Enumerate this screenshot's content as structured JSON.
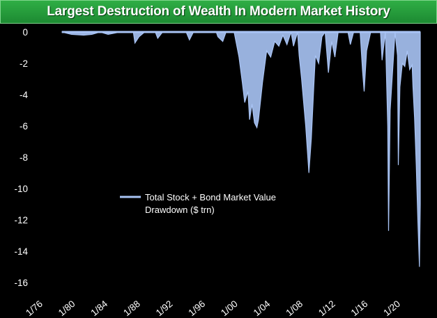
{
  "chart_data": {
    "type": "area",
    "title": "Largest Destruction of Wealth In Modern Market History",
    "xlabel": "",
    "ylabel": "",
    "x_tick_labels": [
      "1/76",
      "1/80",
      "1/84",
      "1/88",
      "1/92",
      "1/96",
      "1/00",
      "1/04",
      "1/08",
      "1/12",
      "1/16",
      "1/20"
    ],
    "y_ticks": [
      0,
      -2,
      -4,
      -6,
      -8,
      -10,
      -12,
      -14,
      -16
    ],
    "xlim": [
      1976.0,
      2023.5
    ],
    "ylim": [
      -16,
      0
    ],
    "grid": false,
    "legend": "center-left",
    "series": [
      {
        "name": "Total Stock + Bond Market Value Drawdown ($ trn)",
        "color": "#a9c4f5",
        "points": [
          [
            1978.8,
            0
          ],
          [
            1980.0,
            -0.15
          ],
          [
            1981.5,
            -0.2
          ],
          [
            1982.5,
            -0.15
          ],
          [
            1983.5,
            0
          ],
          [
            1984.5,
            -0.15
          ],
          [
            1986.0,
            0
          ],
          [
            1987.6,
            0
          ],
          [
            1987.8,
            -0.7
          ],
          [
            1988.3,
            -0.3
          ],
          [
            1989.0,
            0
          ],
          [
            1990.3,
            0
          ],
          [
            1990.6,
            -0.4
          ],
          [
            1991.2,
            0
          ],
          [
            1993.0,
            0
          ],
          [
            1994.1,
            0
          ],
          [
            1994.5,
            -0.5
          ],
          [
            1995.0,
            0
          ],
          [
            1997.8,
            0
          ],
          [
            1998.0,
            -0.3
          ],
          [
            1998.6,
            -0.6
          ],
          [
            1999.0,
            0
          ],
          [
            2000.0,
            0
          ],
          [
            2000.6,
            -1.6
          ],
          [
            2001.0,
            -3.2
          ],
          [
            2001.3,
            -4.5
          ],
          [
            2001.7,
            -3.8
          ],
          [
            2001.9,
            -5.6
          ],
          [
            2002.2,
            -4.6
          ],
          [
            2002.5,
            -5.8
          ],
          [
            2002.8,
            -6.1
          ],
          [
            2003.0,
            -5.6
          ],
          [
            2003.5,
            -3.2
          ],
          [
            2004.0,
            -1.2
          ],
          [
            2004.5,
            -1.6
          ],
          [
            2005.0,
            -0.6
          ],
          [
            2005.5,
            -0.9
          ],
          [
            2006.0,
            -0.2
          ],
          [
            2006.5,
            -0.8
          ],
          [
            2007.0,
            0
          ],
          [
            2007.3,
            -0.9
          ],
          [
            2007.8,
            0
          ],
          [
            2008.0,
            -1.5
          ],
          [
            2008.3,
            -3.0
          ],
          [
            2008.8,
            -6.0
          ],
          [
            2009.0,
            -7.5
          ],
          [
            2009.2,
            -9.0
          ],
          [
            2009.5,
            -6.8
          ],
          [
            2009.8,
            -3.5
          ],
          [
            2010.0,
            -1.5
          ],
          [
            2010.4,
            -2.0
          ],
          [
            2010.8,
            -0.3
          ],
          [
            2011.2,
            0
          ],
          [
            2011.6,
            -2.6
          ],
          [
            2012.0,
            -0.6
          ],
          [
            2012.4,
            -1.6
          ],
          [
            2012.8,
            0
          ],
          [
            2014.0,
            0
          ],
          [
            2014.3,
            -0.8
          ],
          [
            2014.7,
            0
          ],
          [
            2015.5,
            0
          ],
          [
            2015.8,
            -2.5
          ],
          [
            2016.0,
            -3.8
          ],
          [
            2016.3,
            -1.2
          ],
          [
            2016.8,
            0
          ],
          [
            2018.0,
            0
          ],
          [
            2018.2,
            -1.8
          ],
          [
            2018.6,
            0
          ],
          [
            2018.9,
            -6.0
          ],
          [
            2019.0,
            -12.7
          ],
          [
            2019.2,
            -5.0
          ],
          [
            2019.5,
            -2.5
          ],
          [
            2019.8,
            0
          ],
          [
            2020.1,
            -1.5
          ],
          [
            2020.2,
            -8.5
          ],
          [
            2020.4,
            -3.5
          ],
          [
            2020.7,
            -2.0
          ],
          [
            2021.0,
            -2.2
          ],
          [
            2021.3,
            -1.2
          ],
          [
            2021.6,
            -2.4
          ],
          [
            2021.9,
            -2.1
          ],
          [
            2022.0,
            -3.5
          ],
          [
            2022.2,
            -5.5
          ],
          [
            2022.4,
            -8.5
          ],
          [
            2022.6,
            -12.0
          ],
          [
            2022.8,
            -15.0
          ],
          [
            2022.9,
            -11.0
          ]
        ]
      }
    ]
  }
}
